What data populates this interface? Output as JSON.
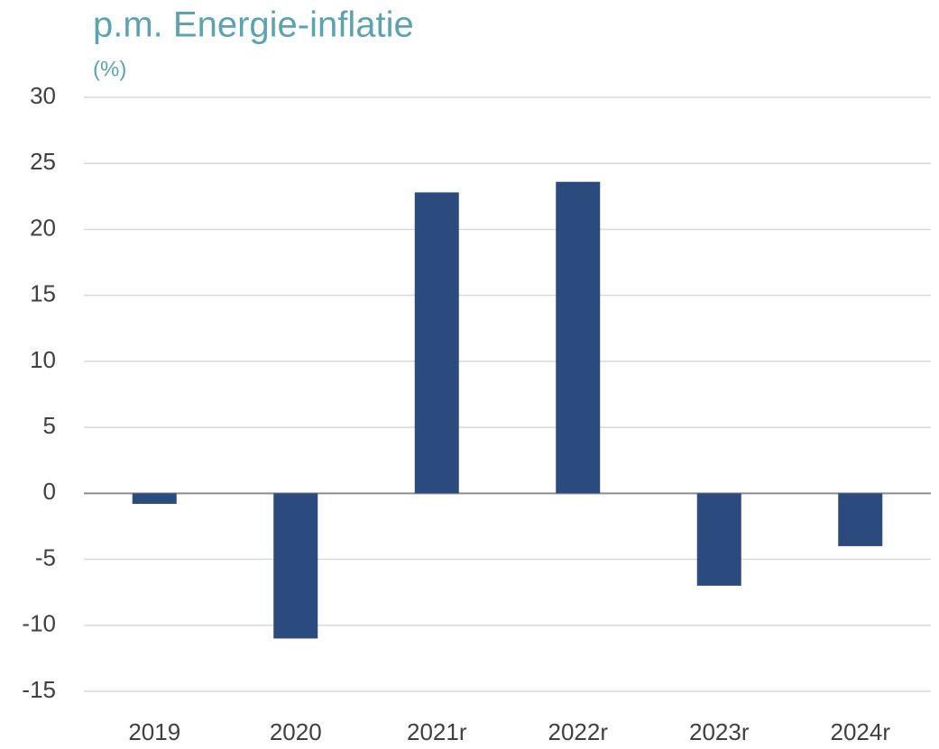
{
  "chart_data": {
    "type": "bar",
    "title": "p.m. Energie-inflatie",
    "subtitle": "(%)",
    "categories": [
      "2019",
      "2020",
      "2021r",
      "2022r",
      "2023r",
      "2024r"
    ],
    "values": [
      -0.8,
      -11.0,
      22.8,
      23.6,
      -7.0,
      -4.0
    ],
    "color": "#2b4a7e",
    "ylim": [
      -15,
      30
    ],
    "yticks": [
      -15,
      -10,
      -5,
      0,
      5,
      10,
      15,
      20,
      25,
      30
    ],
    "grid": true
  }
}
